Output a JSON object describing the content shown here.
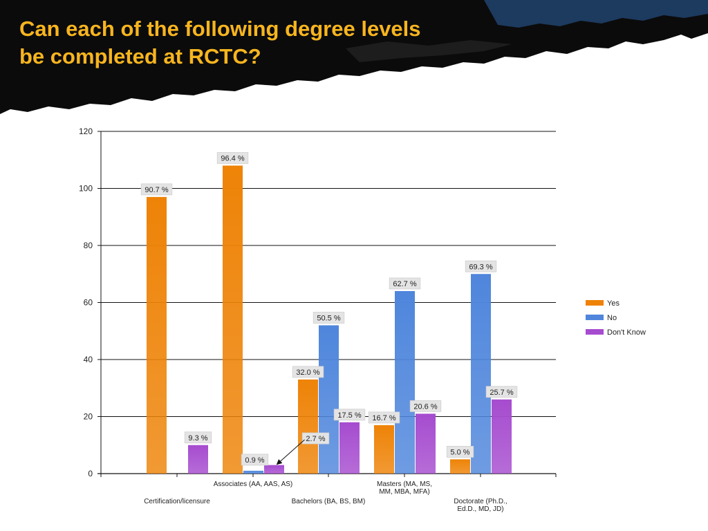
{
  "title": [
    "Can each of the following degree levels",
    "be completed at RCTC?"
  ],
  "colors": {
    "title": "#f7b51e",
    "banner": "#0b0b0b",
    "banner_blue": "#1d3a5f",
    "yes": "#ee8307",
    "no": "#4f86dc",
    "dont_know": "#a64ccf"
  },
  "chart_data": {
    "type": "bar",
    "categories": [
      [
        "Certification/licensure"
      ],
      [
        "Associates (AA, AAS, AS)"
      ],
      [
        "Bachelors (BA, BS, BM)"
      ],
      [
        "Masters (MA, MS,",
        "MM, MBA, MFA)"
      ],
      [
        "Doctorate (Ph.D.,",
        "Ed.D., MD, JD)"
      ]
    ],
    "series": [
      {
        "name": "Yes",
        "values": [
          97,
          108,
          33,
          17,
          5
        ],
        "labels": [
          "90.7 %",
          "96.4 %",
          "32.0 %",
          "16.7 %",
          "5.0 %"
        ]
      },
      {
        "name": "No",
        "values": [
          0,
          1,
          52,
          64,
          70
        ],
        "labels": [
          "",
          "0.9 %",
          "50.5 %",
          "62.7 %",
          "69.3 %"
        ]
      },
      {
        "name": "Don't Know",
        "values": [
          10,
          3,
          18,
          21,
          26
        ],
        "labels": [
          "9.3 %",
          "2.7 %",
          "17.5 %",
          "20.6 %",
          "25.7 %"
        ]
      }
    ],
    "ylim": [
      0,
      120
    ],
    "yticks": [
      0,
      20,
      40,
      60,
      80,
      100,
      120
    ],
    "grid": true,
    "legend": "right"
  }
}
